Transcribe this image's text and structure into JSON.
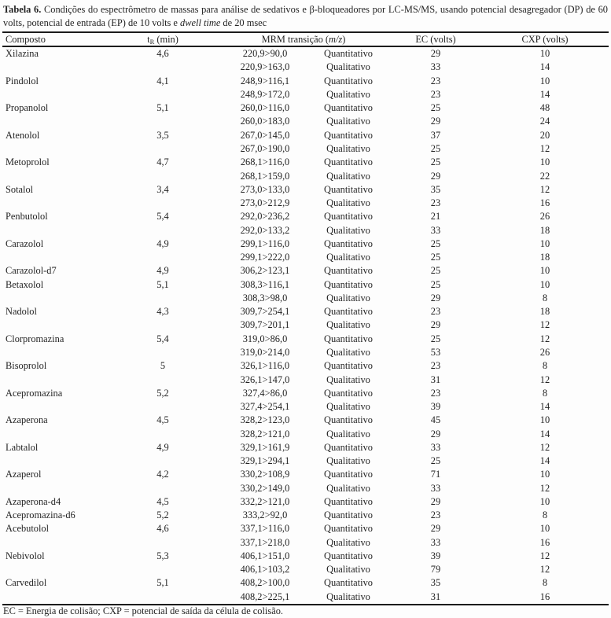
{
  "caption": {
    "label": "Tabela 6.",
    "text_before_italic": " Condições do espectrômetro de massas para análise de sedativos e β-bloqueadores por LC-MS/MS, usando potencial desagregador (DP) de 60 volts, potencial de entrada (EP) de 10 volts e ",
    "italic_text": "dwell time",
    "text_after_italic": " de 20 msec"
  },
  "columns": {
    "compound": "Composto",
    "tr_main": "t",
    "tr_sub": "R",
    "tr_rest": " (min)",
    "mrm_pre": "MRM transição (",
    "mrm_italic": "m/z",
    "mrm_post": ")",
    "ec": "EC (volts)",
    "cxp": "CXP (volts)"
  },
  "rows": [
    {
      "compound": "Xilazina",
      "tr": "4,6",
      "transitions": [
        {
          "mrm": "220,9>90,0",
          "type": "Quantitativo",
          "ec": "29",
          "cxp": "10"
        },
        {
          "mrm": "220,9>163,0",
          "type": "Qualitativo",
          "ec": "33",
          "cxp": "14"
        }
      ]
    },
    {
      "compound": "Pindolol",
      "tr": "4,1",
      "transitions": [
        {
          "mrm": "248,9>116,1",
          "type": "Quantitativo",
          "ec": "23",
          "cxp": "10"
        },
        {
          "mrm": "248,9>172,0",
          "type": "Qualitativo",
          "ec": "23",
          "cxp": "14"
        }
      ]
    },
    {
      "compound": "Propanolol",
      "tr": "5,1",
      "transitions": [
        {
          "mrm": "260,0>116,0",
          "type": "Quantitativo",
          "ec": "25",
          "cxp": "48"
        },
        {
          "mrm": "260,0>183,0",
          "type": "Qualitativo",
          "ec": "29",
          "cxp": "24"
        }
      ]
    },
    {
      "compound": "Atenolol",
      "tr": "3,5",
      "transitions": [
        {
          "mrm": "267,0>145,0",
          "type": "Quantitativo",
          "ec": "37",
          "cxp": "20"
        },
        {
          "mrm": "267,0>190,0",
          "type": "Qualitativo",
          "ec": "25",
          "cxp": "12"
        }
      ]
    },
    {
      "compound": "Metoprolol",
      "tr": "4,7",
      "transitions": [
        {
          "mrm": "268,1>116,0",
          "type": "Quantitativo",
          "ec": "25",
          "cxp": "10"
        },
        {
          "mrm": "268,1>159,0",
          "type": "Qualitativo",
          "ec": "29",
          "cxp": "22"
        }
      ]
    },
    {
      "compound": "Sotalol",
      "tr": "3,4",
      "transitions": [
        {
          "mrm": "273,0>133,0",
          "type": "Quantitativo",
          "ec": "35",
          "cxp": "12"
        },
        {
          "mrm": "273,0>212,9",
          "type": "Qualitativo",
          "ec": "23",
          "cxp": "16"
        }
      ]
    },
    {
      "compound": "Penbutolol",
      "tr": "5,4",
      "transitions": [
        {
          "mrm": "292,0>236,2",
          "type": "Quantitativo",
          "ec": "21",
          "cxp": "26"
        },
        {
          "mrm": "292,0>133,2",
          "type": "Qualitativo",
          "ec": "33",
          "cxp": "18"
        }
      ]
    },
    {
      "compound": "Carazolol",
      "tr": "4,9",
      "transitions": [
        {
          "mrm": "299,1>116,0",
          "type": "Quantitativo",
          "ec": "25",
          "cxp": "10"
        },
        {
          "mrm": "299,1>222,0",
          "type": "Qualitativo",
          "ec": "25",
          "cxp": "18"
        }
      ]
    },
    {
      "compound": "Carazolol-d7",
      "tr": "4,9",
      "transitions": [
        {
          "mrm": "306,2>123,1",
          "type": "Quantitativo",
          "ec": "25",
          "cxp": "10"
        }
      ]
    },
    {
      "compound": "Betaxolol",
      "tr": "5,1",
      "transitions": [
        {
          "mrm": "308,3>116,1",
          "type": "Quantitativo",
          "ec": "25",
          "cxp": "10"
        },
        {
          "mrm": "308,3>98,0",
          "type": "Qualitativo",
          "ec": "29",
          "cxp": "8"
        }
      ]
    },
    {
      "compound": "Nadolol",
      "tr": "4,3",
      "transitions": [
        {
          "mrm": "309,7>254,1",
          "type": "Quantitativo",
          "ec": "23",
          "cxp": "18"
        },
        {
          "mrm": "309,7>201,1",
          "type": "Qualitativo",
          "ec": "29",
          "cxp": "12"
        }
      ]
    },
    {
      "compound": "Clorpromazina",
      "tr": "5,4",
      "transitions": [
        {
          "mrm": "319,0>86,0",
          "type": "Quantitativo",
          "ec": "25",
          "cxp": "12"
        },
        {
          "mrm": "319,0>214,0",
          "type": "Qualitativo",
          "ec": "53",
          "cxp": "26"
        }
      ]
    },
    {
      "compound": "Bisoprolol",
      "tr": "5",
      "transitions": [
        {
          "mrm": "326,1>116,0",
          "type": "Quantitativo",
          "ec": "23",
          "cxp": "8"
        },
        {
          "mrm": "326,1>147,0",
          "type": "Qualitativo",
          "ec": "31",
          "cxp": "12"
        }
      ]
    },
    {
      "compound": "Acepromazina",
      "tr": "5,2",
      "transitions": [
        {
          "mrm": "327,4>86,0",
          "type": "Quantitativo",
          "ec": "23",
          "cxp": "8"
        },
        {
          "mrm": "327,4>254,1",
          "type": "Qualitativo",
          "ec": "39",
          "cxp": "14"
        }
      ]
    },
    {
      "compound": "Azaperona",
      "tr": "4,5",
      "transitions": [
        {
          "mrm": "328,2>123,0",
          "type": "Quantitativo",
          "ec": "45",
          "cxp": "10"
        },
        {
          "mrm": "328,2>121,0",
          "type": "Qualitativo",
          "ec": "29",
          "cxp": "14"
        }
      ]
    },
    {
      "compound": "Labtalol",
      "tr": "4,9",
      "transitions": [
        {
          "mrm": "329,1>161,9",
          "type": "Quantitativo",
          "ec": "33",
          "cxp": "12"
        },
        {
          "mrm": "329,1>294,1",
          "type": "Qualitativo",
          "ec": "25",
          "cxp": "14"
        }
      ]
    },
    {
      "compound": "Azaperol",
      "tr": "4,2",
      "transitions": [
        {
          "mrm": "330,2>108,9",
          "type": "Quantitativo",
          "ec": "71",
          "cxp": "10"
        },
        {
          "mrm": "330,2>149,0",
          "type": "Qualitativo",
          "ec": "33",
          "cxp": "12"
        }
      ]
    },
    {
      "compound": "Azaperona-d4",
      "tr": "4,5",
      "transitions": [
        {
          "mrm": "332,2>121,0",
          "type": "Quantitativo",
          "ec": "29",
          "cxp": "10"
        }
      ]
    },
    {
      "compound": "Acepromazina-d6",
      "tr": "5,2",
      "transitions": [
        {
          "mrm": "333,2>92,0",
          "type": "Quantitativo",
          "ec": "23",
          "cxp": "8"
        }
      ]
    },
    {
      "compound": "Acebutolol",
      "tr": "4,6",
      "transitions": [
        {
          "mrm": "337,1>116,0",
          "type": "Quantitativo",
          "ec": "29",
          "cxp": "10"
        },
        {
          "mrm": "337,1>218,0",
          "type": "Qualitativo",
          "ec": "33",
          "cxp": "16"
        }
      ]
    },
    {
      "compound": "Nebivolol",
      "tr": "5,3",
      "transitions": [
        {
          "mrm": "406,1>151,0",
          "type": "Quantitativo",
          "ec": "39",
          "cxp": "12"
        },
        {
          "mrm": "406,1>103,2",
          "type": "Qualitativo",
          "ec": "79",
          "cxp": "12"
        }
      ]
    },
    {
      "compound": "Carvedilol",
      "tr": "5,1",
      "transitions": [
        {
          "mrm": "408,2>100,0",
          "type": "Quantitativo",
          "ec": "35",
          "cxp": "8"
        },
        {
          "mrm": "408,2>225,1",
          "type": "Qualitativo",
          "ec": "31",
          "cxp": "16"
        }
      ]
    }
  ],
  "footnote": "EC = Energia de colisão; CXP = potencial de saída da célula de colisão."
}
